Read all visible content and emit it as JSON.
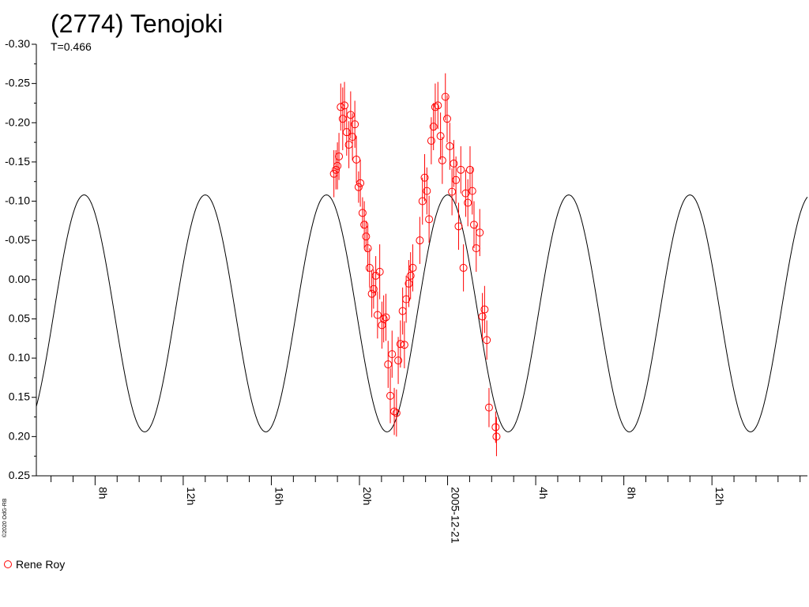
{
  "chart_data": {
    "type": "scatter",
    "title": "(2774) Tenojoki",
    "subtitle": "T=0.466",
    "credit": "©2020 OdG-RB",
    "y_ticks": [
      "-0.30",
      "-0.25",
      "-0.20",
      "-0.15",
      "-0.10",
      "-0.05",
      "0.00",
      "0.05",
      "0.10",
      "0.15",
      "0.20",
      "0.25"
    ],
    "ylim": [
      -0.3,
      0.25
    ],
    "y_inverted": true,
    "x_range_hours": [
      5.3333,
      16.3333
    ],
    "x_major_ticks": [
      {
        "hour": 8,
        "label": "8h"
      },
      {
        "hour": 12,
        "label": "12h"
      },
      {
        "hour": 16,
        "label": "16h"
      },
      {
        "hour": 20,
        "label": "20h"
      },
      {
        "hour": 24,
        "label": "2005-12-21"
      },
      {
        "hour": 28,
        "label": "4h"
      },
      {
        "hour": 32,
        "label": "8h"
      },
      {
        "hour": 36,
        "label": "12h"
      }
    ],
    "fit_curve": {
      "period_hours": 5.5,
      "mean": 0.043,
      "amplitude": 0.151,
      "peak_hour": 7.5
    },
    "series": [
      {
        "name": "Rene Roy",
        "color": "#ff0000",
        "points": [
          {
            "x": 18.84,
            "y": -0.135,
            "err": 0.03
          },
          {
            "x": 18.93,
            "y": -0.14,
            "err": 0.025
          },
          {
            "x": 19.0,
            "y": -0.145,
            "err": 0.03
          },
          {
            "x": 19.07,
            "y": -0.157,
            "err": 0.03
          },
          {
            "x": 19.15,
            "y": -0.22,
            "err": 0.03
          },
          {
            "x": 19.24,
            "y": -0.205,
            "err": 0.04
          },
          {
            "x": 19.32,
            "y": -0.222,
            "err": 0.03
          },
          {
            "x": 19.42,
            "y": -0.188,
            "err": 0.03
          },
          {
            "x": 19.52,
            "y": -0.172,
            "err": 0.03
          },
          {
            "x": 19.6,
            "y": -0.21,
            "err": 0.03
          },
          {
            "x": 19.68,
            "y": -0.182,
            "err": 0.03
          },
          {
            "x": 19.79,
            "y": -0.198,
            "err": 0.03
          },
          {
            "x": 19.86,
            "y": -0.153,
            "err": 0.03
          },
          {
            "x": 19.96,
            "y": -0.118,
            "err": 0.02
          },
          {
            "x": 20.04,
            "y": -0.123,
            "err": 0.03
          },
          {
            "x": 20.14,
            "y": -0.085,
            "err": 0.02
          },
          {
            "x": 20.22,
            "y": -0.07,
            "err": 0.03
          },
          {
            "x": 20.3,
            "y": -0.055,
            "err": 0.02
          },
          {
            "x": 20.38,
            "y": -0.04,
            "err": 0.03
          },
          {
            "x": 20.46,
            "y": -0.015,
            "err": 0.025
          },
          {
            "x": 20.56,
            "y": 0.018,
            "err": 0.03
          },
          {
            "x": 20.64,
            "y": 0.012,
            "err": 0.025
          },
          {
            "x": 20.74,
            "y": -0.005,
            "err": 0.025
          },
          {
            "x": 20.82,
            "y": 0.045,
            "err": 0.03
          },
          {
            "x": 20.92,
            "y": -0.01,
            "err": 0.035
          },
          {
            "x": 21.02,
            "y": 0.058,
            "err": 0.03
          },
          {
            "x": 21.1,
            "y": 0.05,
            "err": 0.03
          },
          {
            "x": 21.2,
            "y": 0.048,
            "err": 0.03
          },
          {
            "x": 21.3,
            "y": 0.108,
            "err": 0.03
          },
          {
            "x": 21.4,
            "y": 0.148,
            "err": 0.035
          },
          {
            "x": 21.48,
            "y": 0.095,
            "err": 0.03
          },
          {
            "x": 21.58,
            "y": 0.168,
            "err": 0.03
          },
          {
            "x": 21.68,
            "y": 0.17,
            "err": 0.03
          },
          {
            "x": 21.76,
            "y": 0.103,
            "err": 0.03
          },
          {
            "x": 21.86,
            "y": 0.082,
            "err": 0.03
          },
          {
            "x": 21.96,
            "y": 0.04,
            "err": 0.03
          },
          {
            "x": 22.04,
            "y": 0.083,
            "err": 0.03
          },
          {
            "x": 22.12,
            "y": 0.025,
            "err": 0.03
          },
          {
            "x": 22.24,
            "y": 0.005,
            "err": 0.03
          },
          {
            "x": 22.32,
            "y": -0.005,
            "err": 0.03
          },
          {
            "x": 22.42,
            "y": -0.015,
            "err": 0.03
          },
          {
            "x": 22.74,
            "y": -0.05,
            "err": 0.03
          },
          {
            "x": 22.86,
            "y": -0.1,
            "err": 0.03
          },
          {
            "x": 22.96,
            "y": -0.13,
            "err": 0.03
          },
          {
            "x": 23.06,
            "y": -0.113,
            "err": 0.03
          },
          {
            "x": 23.16,
            "y": -0.077,
            "err": 0.03
          },
          {
            "x": 23.26,
            "y": -0.177,
            "err": 0.03
          },
          {
            "x": 23.36,
            "y": -0.195,
            "err": 0.03
          },
          {
            "x": 23.44,
            "y": -0.22,
            "err": 0.03
          },
          {
            "x": 23.56,
            "y": -0.222,
            "err": 0.03
          },
          {
            "x": 23.68,
            "y": -0.183,
            "err": 0.03
          },
          {
            "x": 23.76,
            "y": -0.152,
            "err": 0.03
          },
          {
            "x": 23.9,
            "y": -0.233,
            "err": 0.03
          },
          {
            "x": 23.98,
            "y": -0.205,
            "err": 0.03
          },
          {
            "x": 24.1,
            "y": -0.17,
            "err": 0.03
          },
          {
            "x": 24.2,
            "y": -0.112,
            "err": 0.03
          },
          {
            "x": 24.28,
            "y": -0.148,
            "err": 0.03
          },
          {
            "x": 24.38,
            "y": -0.127,
            "err": 0.03
          },
          {
            "x": 24.5,
            "y": -0.068,
            "err": 0.03
          },
          {
            "x": 24.6,
            "y": -0.14,
            "err": 0.03
          },
          {
            "x": 24.72,
            "y": -0.015,
            "err": 0.03
          },
          {
            "x": 24.82,
            "y": -0.11,
            "err": 0.03
          },
          {
            "x": 24.92,
            "y": -0.098,
            "err": 0.03
          },
          {
            "x": 25.02,
            "y": -0.14,
            "err": 0.03
          },
          {
            "x": 25.12,
            "y": -0.113,
            "err": 0.03
          },
          {
            "x": 25.2,
            "y": -0.07,
            "err": 0.03
          },
          {
            "x": 25.3,
            "y": -0.04,
            "err": 0.03
          },
          {
            "x": 25.46,
            "y": -0.06,
            "err": 0.03
          },
          {
            "x": 25.58,
            "y": 0.047,
            "err": 0.03
          },
          {
            "x": 25.68,
            "y": 0.038,
            "err": 0.03
          },
          {
            "x": 25.78,
            "y": 0.077,
            "err": 0.025
          },
          {
            "x": 25.88,
            "y": 0.163,
            "err": 0.025
          },
          {
            "x": 26.18,
            "y": 0.188,
            "err": 0.02
          },
          {
            "x": 26.22,
            "y": 0.2,
            "err": 0.025
          }
        ]
      }
    ],
    "legend": [
      {
        "label": "Rene Roy",
        "marker": "circle",
        "color": "#ff0000"
      }
    ],
    "legend_position": "bottom-left"
  }
}
